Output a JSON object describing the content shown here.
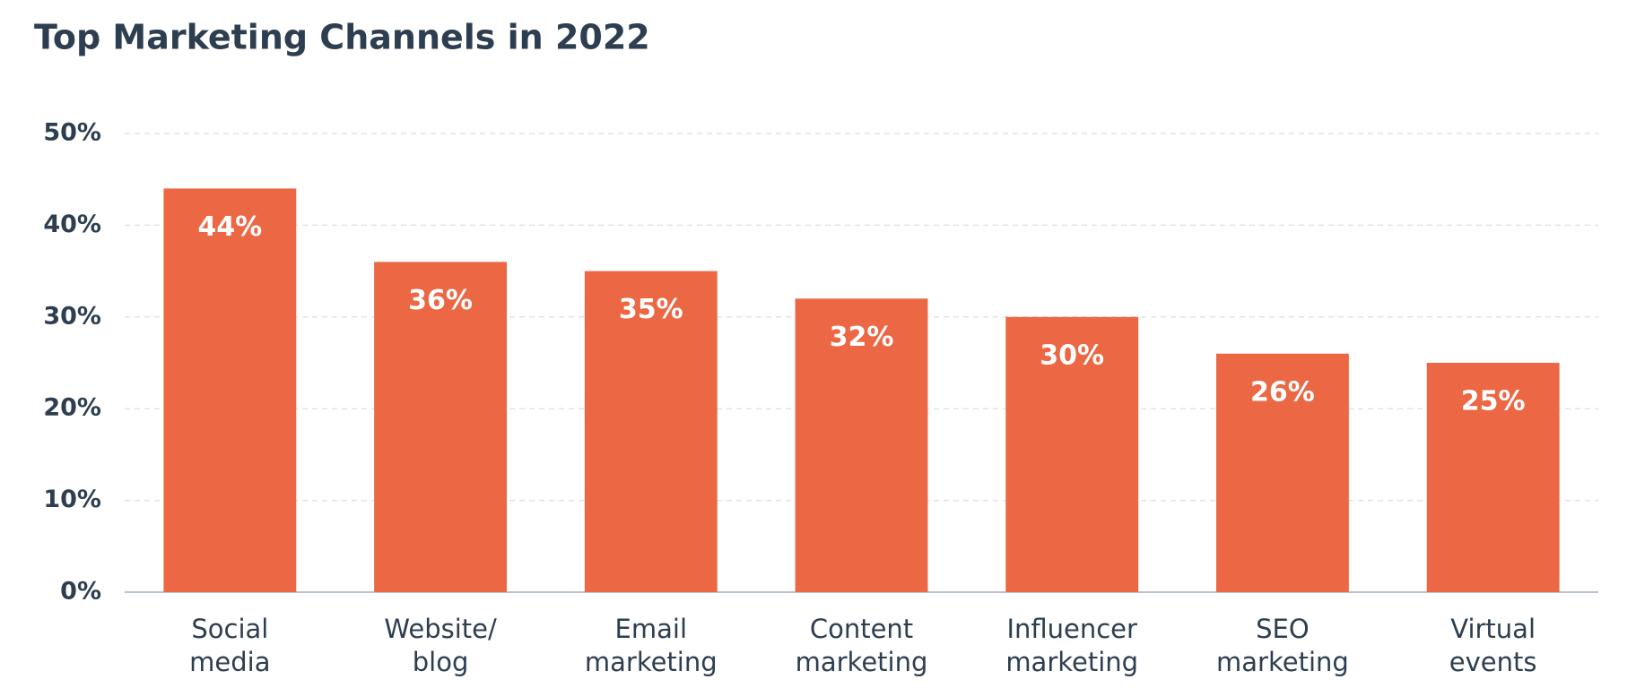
{
  "chart_data": {
    "type": "bar",
    "title": "Top Marketing Channels in 2022",
    "categories": [
      "Social media",
      "Website/ blog",
      "Email marketing",
      "Content marketing",
      "Influencer marketing",
      "SEO marketing",
      "Virtual events"
    ],
    "values": [
      44,
      36,
      35,
      32,
      30,
      26,
      25
    ],
    "value_labels": [
      "44%",
      "36%",
      "35%",
      "32%",
      "30%",
      "26%",
      "25%"
    ],
    "color": "#ec6744",
    "ylim": [
      0,
      50
    ],
    "yticks": [
      {
        "value": 0,
        "label": "0%"
      },
      {
        "value": 10,
        "label": "10%"
      },
      {
        "value": 20,
        "label": "20%"
      },
      {
        "value": 30,
        "label": "30%"
      },
      {
        "value": 40,
        "label": "40%"
      },
      {
        "value": 50,
        "label": "50%"
      }
    ],
    "grid": true
  }
}
